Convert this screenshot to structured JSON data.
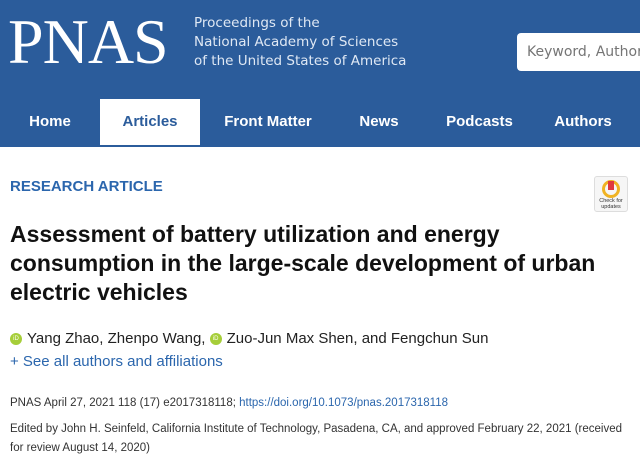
{
  "header": {
    "logo": "PNAS",
    "tagline": [
      "Proceedings of the",
      "National Academy of Sciences",
      "of the United States of America"
    ],
    "search_placeholder": "Keyword, Author, or DOI"
  },
  "nav": [
    {
      "label": "Home"
    },
    {
      "label": "Articles",
      "active": true
    },
    {
      "label": "Front Matter"
    },
    {
      "label": "News"
    },
    {
      "label": "Podcasts"
    },
    {
      "label": "Authors"
    }
  ],
  "article": {
    "type": "RESEARCH ARTICLE",
    "check_updates": [
      "Check for",
      "updates"
    ],
    "title": "Assessment of battery utilization and energy consumption in the large-scale development of urban electric vehicles",
    "authors": [
      "Yang Zhao, Zhenpo Wang,",
      "Zuo-Jun Max Shen, and Fengchun Sun"
    ],
    "see_all": "+ See all authors and affiliations",
    "citation": "PNAS April 27, 2021 118 (17) e2017318118;",
    "doi": "https://doi.org/10.1073/pnas.2017318118",
    "edited": "Edited by John H. Seinfeld, California Institute of Technology, Pasadena, CA, and approved February 22, 2021 (received for review August 14, 2020)"
  },
  "colors": {
    "brand": "#2b5c9b",
    "link": "#2b66ad",
    "orcid": "#a6ce39"
  }
}
